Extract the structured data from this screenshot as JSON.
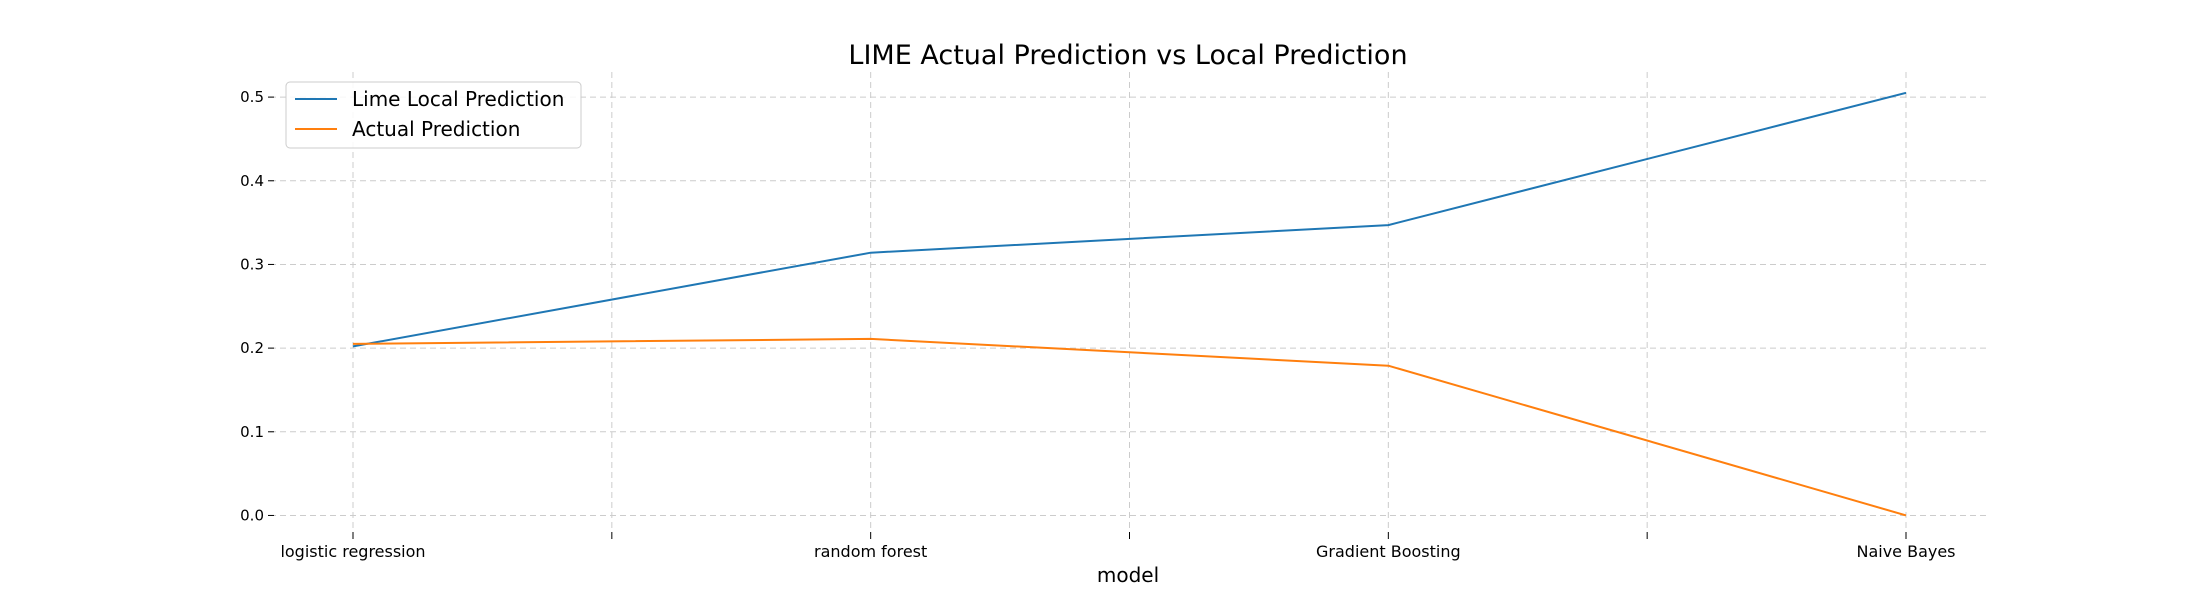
{
  "chart_data": {
    "type": "line",
    "title": "LIME Actual Prediction vs Local Prediction",
    "xlabel": "model",
    "ylabel": "",
    "categories": [
      "logistic regression",
      "random forest",
      "Gradient Boosting",
      "Naive Bayes"
    ],
    "x_ticks": [
      "logistic regression",
      "",
      "random forest",
      "",
      "Gradient Boosting",
      "",
      "Naive Bayes"
    ],
    "y_ticks": [
      "0.0",
      "0.1",
      "0.2",
      "0.3",
      "0.4",
      "0.5"
    ],
    "ylim": [
      -0.015,
      0.53
    ],
    "grid": true,
    "legend_position": "top-left",
    "series": [
      {
        "name": "Lime Local Prediction",
        "color": "#1f77b4",
        "values": [
          0.202,
          0.314,
          0.347,
          0.505
        ]
      },
      {
        "name": "Actual Prediction",
        "color": "#ff7f0e",
        "values": [
          0.205,
          0.211,
          0.179,
          0.0
        ]
      }
    ]
  }
}
